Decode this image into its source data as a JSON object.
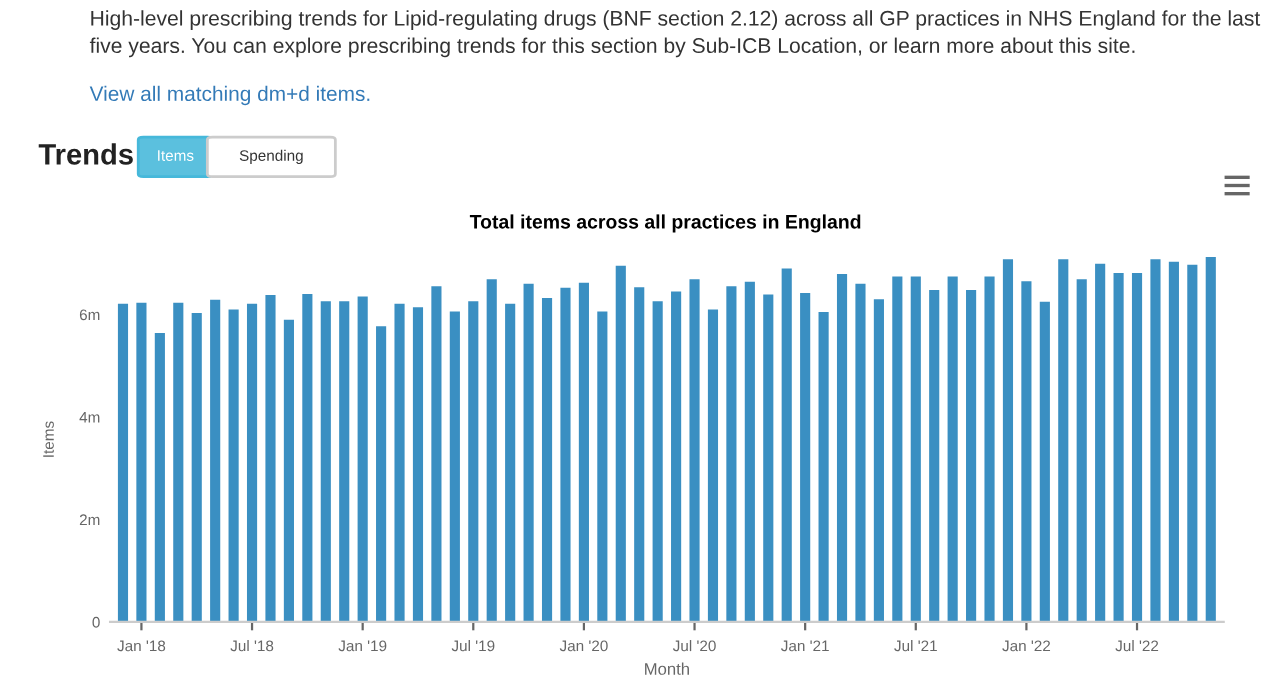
{
  "chart_data": {
    "type": "bar",
    "title": "Total items across all practices in England",
    "subtitle": "High-level prescribing trends for Lipid-regulating drugs (BNF section 2.12) across all GP practices in NHS England for the last five years. You can explore prescribing trends for this section by Sub-ICB Location, or learn more about this site.",
    "annotations": [
      "View all matching dm+d items.",
      "Trends",
      "Items",
      "Spending"
    ],
    "xlabel": "Month",
    "ylabel": "Items",
    "categories": [
      null,
      "Jan '18",
      null,
      null,
      null,
      null,
      null,
      "Jul '18",
      null,
      null,
      null,
      null,
      null,
      "Jan '19",
      null,
      null,
      null,
      null,
      null,
      "Jul '19",
      null,
      null,
      null,
      null,
      null,
      "Jan '20",
      null,
      null,
      null,
      null,
      null,
      "Jul '20",
      null,
      null,
      null,
      null,
      null,
      "Jan '21",
      null,
      null,
      null,
      null,
      null,
      "Jul '21",
      null,
      null,
      null,
      null,
      null,
      "Jan '22",
      null,
      null,
      null,
      null,
      null,
      "Jul '22",
      null,
      null,
      null,
      null
    ],
    "values": [
      6210000,
      6230000,
      5640000,
      6230000,
      6030000,
      6290000,
      6100000,
      6210000,
      6380000,
      5900000,
      6400000,
      6260000,
      6260000,
      6350000,
      5770000,
      6210000,
      6140000,
      6550000,
      6060000,
      6260000,
      6690000,
      6210000,
      6600000,
      6320000,
      6520000,
      6620000,
      6060000,
      6950000,
      6530000,
      6260000,
      6450000,
      6690000,
      6100000,
      6550000,
      6640000,
      6390000,
      6900000,
      6420000,
      6050000,
      6790000,
      6600000,
      6300000,
      6740000,
      6740000,
      6480000,
      6740000,
      6480000,
      6740000,
      7080000,
      6650000,
      6250000,
      7080000,
      6690000,
      6990000,
      6810000,
      6810000,
      7080000,
      7030000,
      6970000,
      7120000
    ],
    "color": "#3a8fc2",
    "ylim": [
      0,
      7120000
    ],
    "yticks": [
      {
        "value": 0,
        "label": "0"
      },
      {
        "value": 2000000,
        "label": "2m"
      },
      {
        "value": 4000000,
        "label": "4m"
      },
      {
        "value": 6000000,
        "label": "6m"
      }
    ],
    "grid": false,
    "legend": false
  }
}
